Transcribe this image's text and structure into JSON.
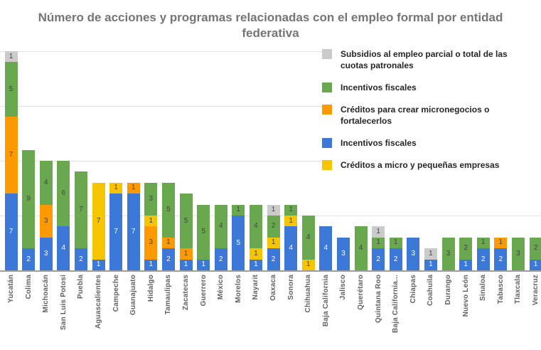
{
  "header": {
    "title_line1": "Número de acciones y programas relacionadas con el empleo formal por entidad",
    "title_line2": "federativa"
  },
  "colors": {
    "blue": "#3C78D8",
    "orange": "#FF9900",
    "yellow": "#F7C500",
    "green": "#6AA84F",
    "gray": "#CBCBCB",
    "gridline": "#E3E3E3",
    "axis_line": "#9E9E9E",
    "axis_label_text": "#616161",
    "title_text": "#757575",
    "segment_label_dark": "#424242",
    "segment_label_light": "#FFFFFF",
    "legend_text": "#262626"
  },
  "legend": {
    "items": [
      {
        "label": "Subsidios al empleo parcial o total de las cuotas patronales",
        "color_key": "gray"
      },
      {
        "label": "Incentivos fiscales",
        "color_key": "green"
      },
      {
        "label": "Créditos para crear micronegocios o fortalecerlos",
        "color_key": "orange"
      },
      {
        "label": "Incentivos fiscales",
        "color_key": "blue"
      },
      {
        "label": "Créditos a micro y pequeñas empresas",
        "color_key": "yellow"
      }
    ]
  },
  "chart_data": {
    "type": "bar",
    "stacked": true,
    "title": "Número de acciones y programas relacionadas con el empleo formal por entidad federativa",
    "xlabel": "",
    "ylabel": "",
    "ylim": [
      0,
      20
    ],
    "gridlines_at": [
      5,
      10,
      15,
      20
    ],
    "grid": true,
    "legend_position": "top-right",
    "series": [
      {
        "name": "Incentivos fiscales",
        "color_key": "blue"
      },
      {
        "name": "Créditos para crear micronegocios o fortalecerlos",
        "color_key": "orange"
      },
      {
        "name": "Créditos a micro y pequeñas empresas",
        "color_key": "yellow"
      },
      {
        "name": "Incentivos fiscales",
        "color_key": "green"
      },
      {
        "name": "Subsidios al empleo parcial o total de las cuotas patronales",
        "color_key": "gray"
      }
    ],
    "categories": [
      "Yucatán",
      "Colima",
      "Michoacán",
      "San Luis Potosí",
      "Puebla",
      "Aguascalientes",
      "Campeche",
      "Guanajuato",
      "Hidalgo",
      "Tamaulipas",
      "Zacatecas",
      "Guerrero",
      "México",
      "Morelos",
      "Nayarit",
      "Oaxaca",
      "Sonora",
      "Chihuahua",
      "Baja California",
      "Jalisco",
      "Querétaro",
      "Quintana Roo",
      "Baja California...",
      "Chiapas",
      "Coahuila",
      "Durango",
      "Nuevo León",
      "Sinaloa",
      "Tabasco",
      "Tlaxcala",
      "Veracruz"
    ],
    "values": [
      [
        7,
        7,
        0,
        5,
        1
      ],
      [
        2,
        0,
        0,
        9,
        0
      ],
      [
        3,
        3,
        0,
        4,
        0
      ],
      [
        4,
        0,
        0,
        6,
        0
      ],
      [
        2,
        0,
        0,
        7,
        0
      ],
      [
        1,
        0,
        7,
        0,
        0
      ],
      [
        7,
        0,
        1,
        0,
        0
      ],
      [
        7,
        1,
        0,
        0,
        0
      ],
      [
        1,
        3,
        1,
        3,
        0
      ],
      [
        2,
        1,
        0,
        5,
        0
      ],
      [
        1,
        1,
        0,
        5,
        0
      ],
      [
        1,
        0,
        0,
        5,
        0
      ],
      [
        2,
        0,
        0,
        4,
        0
      ],
      [
        5,
        0,
        0,
        1,
        0
      ],
      [
        1,
        0,
        1,
        4,
        0
      ],
      [
        2,
        0,
        1,
        2,
        1
      ],
      [
        4,
        0,
        1,
        1,
        0
      ],
      [
        0,
        0,
        1,
        4,
        0
      ],
      [
        4,
        0,
        0,
        0,
        0
      ],
      [
        3,
        0,
        0,
        0,
        0
      ],
      [
        0,
        0,
        0,
        4,
        0
      ],
      [
        2,
        0,
        0,
        1,
        1
      ],
      [
        2,
        0,
        0,
        1,
        0
      ],
      [
        3,
        0,
        0,
        0,
        0
      ],
      [
        1,
        0,
        0,
        0,
        1
      ],
      [
        0,
        0,
        0,
        3,
        0
      ],
      [
        1,
        0,
        0,
        2,
        0
      ],
      [
        2,
        0,
        0,
        1,
        0
      ],
      [
        2,
        1,
        0,
        0,
        0
      ],
      [
        0,
        0,
        0,
        3,
        0
      ],
      [
        1,
        0,
        0,
        2,
        0
      ]
    ]
  }
}
